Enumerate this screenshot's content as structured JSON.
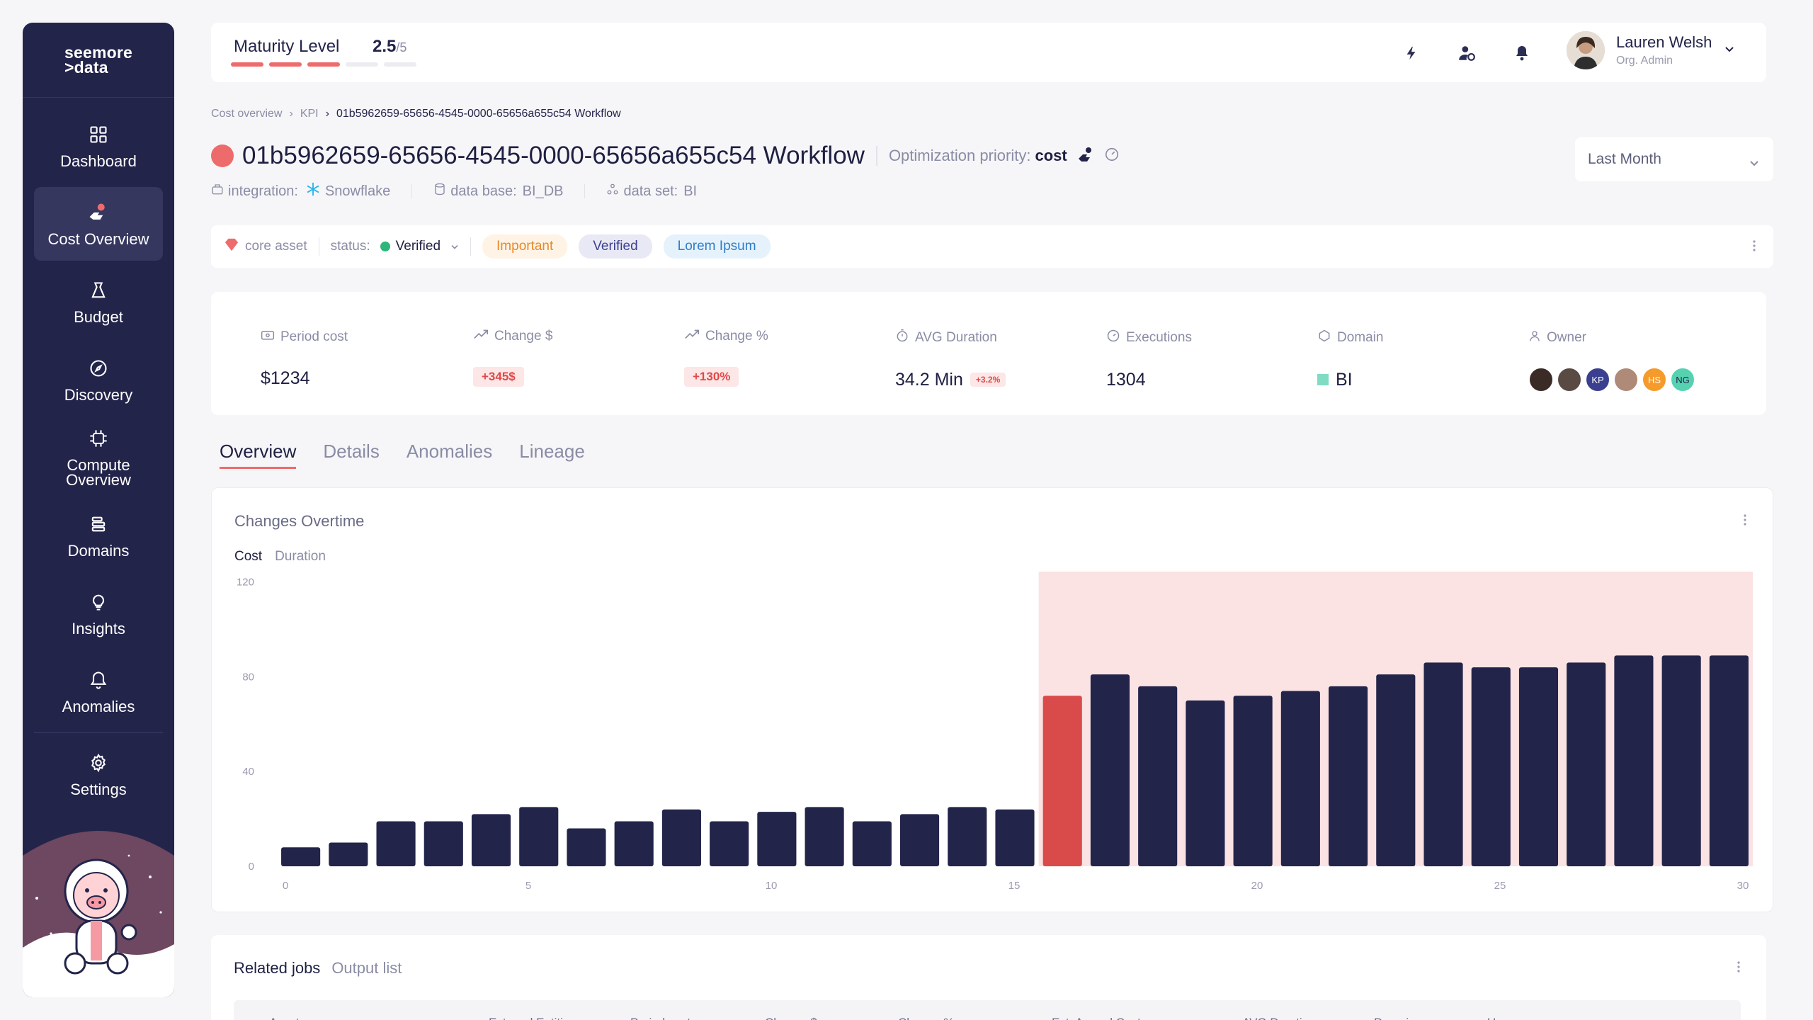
{
  "brand": {
    "line1": "seemore",
    "line2": ">data"
  },
  "nav": [
    {
      "id": "dashboard",
      "label": "Dashboard",
      "icon": "dashboard-icon",
      "active": false
    },
    {
      "id": "cost-overview",
      "label": "Cost Overview",
      "icon": "cost-overview-icon",
      "active": true
    },
    {
      "id": "budget",
      "label": "Budget",
      "icon": "budget-icon",
      "active": false
    },
    {
      "id": "discovery",
      "label": "Discovery",
      "icon": "compass-icon",
      "active": false
    },
    {
      "id": "compute-overview",
      "label": "Compute\nOverview",
      "icon": "chip-icon",
      "active": false
    },
    {
      "id": "domains",
      "label": "Domains",
      "icon": "stack-icon",
      "active": false
    },
    {
      "id": "insights",
      "label": "Insights",
      "icon": "lightbulb-icon",
      "active": false
    },
    {
      "id": "anomalies",
      "label": "Anomalies",
      "icon": "bell-alert-icon",
      "active": false
    }
  ],
  "settings_label": "Settings",
  "topbar": {
    "maturity_label": "Maturity Level",
    "maturity_value": "2.5",
    "maturity_max": "/5",
    "maturity_level": 2.5,
    "user_name": "Lauren Welsh",
    "user_role": "Org. Admin"
  },
  "breadcrumb": [
    "Cost overview",
    "KPI",
    "01b5962659-65656-4545-0000-65656a655c54 Workflow"
  ],
  "header": {
    "title": "01b5962659-65656-4545-0000-65656a655c54 Workflow",
    "opt_label": "Optimization priority:",
    "opt_value": "cost",
    "integration_label": "integration:",
    "integration_value": "Snowflake",
    "database_label": "data base:",
    "database_value": "BI_DB",
    "dataset_label": "data set:",
    "dataset_value": "BI",
    "period": "Last Month"
  },
  "tags": {
    "core_asset": "core asset",
    "status_label": "status:",
    "status_value": "Verified",
    "chips": [
      "Important",
      "Verified",
      "Lorem Ipsum"
    ]
  },
  "kpi": {
    "period_cost": {
      "label": "Period cost",
      "value": "$1234"
    },
    "change_usd": {
      "label": "Change $",
      "value": "+345$"
    },
    "change_pct": {
      "label": "Change %",
      "value": "+130%"
    },
    "avg_duration": {
      "label": "AVG Duration",
      "value": "34.2 Min",
      "delta": "+3.2%"
    },
    "executions": {
      "label": "Executions",
      "value": "1304"
    },
    "domain": {
      "label": "Domain",
      "value": "BI"
    },
    "owner": {
      "label": "Owner",
      "initials": [
        "KP",
        "HS",
        "NG"
      ]
    }
  },
  "tabs": [
    "Overview",
    "Details",
    "Anomalies",
    "Lineage"
  ],
  "chart_card": {
    "title": "Changes Overtime",
    "toggle": [
      "Cost",
      "Duration"
    ]
  },
  "chart_data": {
    "type": "bar",
    "x": [
      0,
      1,
      2,
      3,
      4,
      5,
      6,
      7,
      8,
      9,
      10,
      11,
      12,
      13,
      14,
      15,
      16,
      17,
      18,
      19,
      20,
      21,
      22,
      23,
      24,
      25,
      26,
      27,
      28,
      29,
      30
    ],
    "values": [
      8,
      10,
      19,
      19,
      22,
      25,
      16,
      19,
      24,
      19,
      23,
      25,
      19,
      22,
      25,
      24,
      72,
      81,
      76,
      70,
      72,
      74,
      76,
      81,
      86,
      84,
      84,
      86,
      89,
      89,
      89
    ],
    "highlight_index": 16,
    "highlight_region_start_index": 16,
    "xticks": [
      "0",
      "5",
      "10",
      "15",
      "20",
      "25",
      "30"
    ],
    "yticks": [
      "0",
      "40",
      "80",
      "120"
    ],
    "ylim": [
      0,
      122
    ],
    "colors": {
      "bar": "#23244a",
      "highlight": "#d94a4a",
      "region": "#fbe3e3"
    }
  },
  "related": {
    "title": "Related jobs",
    "tab2": "Output list",
    "columns": [
      "Asset",
      "External Entities",
      "Period cost",
      "Change $",
      "Change %",
      "Est. Annual Cost",
      "AVG Duration",
      "Domain",
      "User"
    ]
  }
}
